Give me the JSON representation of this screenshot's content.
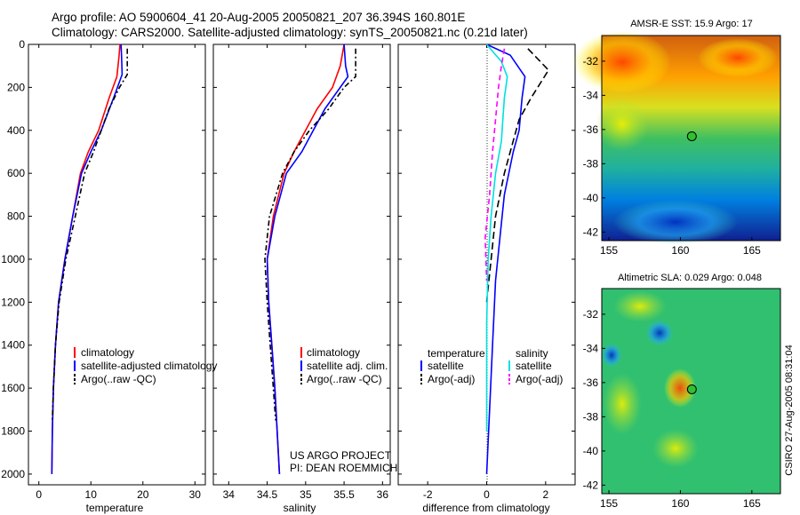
{
  "header": {
    "line1": "Argo profile: AO 5900604_41 20-Aug-2005 20050821_207 36.394S 160.801E",
    "line2": "Climatology: CARS2000. Satellite-adjusted climatology: synTS_20050821.nc (0.21d later)"
  },
  "credit": {
    "project": "US ARGO PROJECT",
    "pi": "PI: DEAN ROEMMICH"
  },
  "timestamp": "CSIRO 27-Aug-2005 08:31:04",
  "colors": {
    "climatology": "#ff0000",
    "satellite": "#0000ff",
    "argo": "#000000",
    "sal_satellite": "#00e0e0",
    "sal_argo": "#ff00ff"
  },
  "chart_data": [
    {
      "type": "line",
      "xlabel": "temperature",
      "ylabel": "",
      "xlim": [
        -2,
        32
      ],
      "ylim": [
        2050,
        0
      ],
      "xticks": [
        0,
        10,
        20,
        30
      ],
      "yticks": [
        0,
        200,
        400,
        600,
        800,
        1000,
        1200,
        1400,
        1600,
        1800,
        2000
      ],
      "legend": [
        "climatology",
        "satellite-adjusted climatology",
        "Argo(..raw -QC)"
      ],
      "series": [
        {
          "name": "climatology",
          "color": "#ff0000",
          "dash": "",
          "points": [
            [
              15.6,
              0
            ],
            [
              15.4,
              60
            ],
            [
              15.0,
              150
            ],
            [
              13.5,
              250
            ],
            [
              11.5,
              400
            ],
            [
              9.5,
              500
            ],
            [
              8.0,
              600
            ],
            [
              6.5,
              800
            ],
            [
              5.0,
              1000
            ],
            [
              3.8,
              1200
            ],
            [
              3.2,
              1400
            ],
            [
              2.8,
              1600
            ],
            [
              2.6,
              1800
            ],
            [
              2.5,
              2000
            ]
          ]
        },
        {
          "name": "satellite-adjusted climatology",
          "color": "#0000ff",
          "dash": "",
          "points": [
            [
              15.8,
              0
            ],
            [
              15.9,
              60
            ],
            [
              16.0,
              140
            ],
            [
              14.5,
              240
            ],
            [
              12.0,
              400
            ],
            [
              10.0,
              500
            ],
            [
              8.2,
              600
            ],
            [
              6.5,
              800
            ],
            [
              5.0,
              1000
            ],
            [
              3.8,
              1200
            ],
            [
              3.2,
              1400
            ],
            [
              2.8,
              1600
            ],
            [
              2.6,
              1800
            ],
            [
              2.5,
              2000
            ]
          ]
        },
        {
          "name": "Argo(..raw -QC)",
          "color": "#000000",
          "dash": "6,3,2,3",
          "points": [
            [
              17.0,
              20
            ],
            [
              17.0,
              100
            ],
            [
              17.0,
              140
            ],
            [
              15.5,
              200
            ],
            [
              13.5,
              300
            ],
            [
              12.0,
              400
            ],
            [
              10.5,
              500
            ],
            [
              8.8,
              600
            ],
            [
              7.0,
              800
            ],
            [
              5.2,
              1000
            ],
            [
              3.9,
              1200
            ],
            [
              3.2,
              1400
            ],
            [
              2.8,
              1600
            ],
            [
              2.6,
              1750
            ]
          ]
        }
      ]
    },
    {
      "type": "line",
      "xlabel": "salinity",
      "xlim": [
        33.8,
        36.1
      ],
      "ylim": [
        2050,
        0
      ],
      "xticks": [
        34,
        34.5,
        35,
        35.5,
        36
      ],
      "legend": [
        "climatology",
        "satellite adj. clim.",
        "Argo(..raw -QC)"
      ],
      "series": [
        {
          "name": "climatology",
          "color": "#ff0000",
          "dash": "",
          "points": [
            [
              35.5,
              0
            ],
            [
              35.45,
              100
            ],
            [
              35.35,
              200
            ],
            [
              35.15,
              300
            ],
            [
              35.0,
              400
            ],
            [
              34.85,
              500
            ],
            [
              34.72,
              600
            ],
            [
              34.58,
              800
            ],
            [
              34.5,
              1000
            ],
            [
              34.52,
              1200
            ],
            [
              34.56,
              1400
            ],
            [
              34.6,
              1600
            ],
            [
              34.63,
              1800
            ],
            [
              34.66,
              2000
            ]
          ]
        },
        {
          "name": "satellite adj. clim.",
          "color": "#0000ff",
          "dash": "",
          "points": [
            [
              35.5,
              0
            ],
            [
              35.52,
              100
            ],
            [
              35.55,
              150
            ],
            [
              35.45,
              200
            ],
            [
              35.25,
              300
            ],
            [
              35.1,
              400
            ],
            [
              34.95,
              500
            ],
            [
              34.75,
              600
            ],
            [
              34.6,
              800
            ],
            [
              34.5,
              1000
            ],
            [
              34.52,
              1200
            ],
            [
              34.56,
              1400
            ],
            [
              34.6,
              1600
            ],
            [
              34.63,
              1800
            ],
            [
              34.66,
              2000
            ]
          ]
        },
        {
          "name": "Argo(..raw -QC)",
          "color": "#000000",
          "dash": "6,3,2,3",
          "points": [
            [
              35.65,
              20
            ],
            [
              35.65,
              100
            ],
            [
              35.65,
              150
            ],
            [
              35.5,
              200
            ],
            [
              35.3,
              300
            ],
            [
              35.05,
              400
            ],
            [
              34.85,
              500
            ],
            [
              34.7,
              600
            ],
            [
              34.53,
              800
            ],
            [
              34.47,
              1000
            ],
            [
              34.5,
              1200
            ],
            [
              34.54,
              1400
            ],
            [
              34.58,
              1600
            ],
            [
              34.61,
              1750
            ]
          ]
        }
      ]
    },
    {
      "type": "line",
      "xlabel": "difference from climatology",
      "xlim": [
        -3,
        3
      ],
      "ylim": [
        2050,
        0
      ],
      "xticks": [
        -2,
        0,
        2
      ],
      "legend_groups": {
        "temperature": [
          "satellite",
          "Argo(-adj)"
        ],
        "salinity": [
          "satellite",
          "Argo(-adj)"
        ]
      },
      "series": [
        {
          "name": "temperature satellite",
          "color": "#0000ff",
          "dash": "",
          "points": [
            [
              0.0,
              0
            ],
            [
              0.8,
              50
            ],
            [
              1.3,
              150
            ],
            [
              1.2,
              250
            ],
            [
              1.1,
              400
            ],
            [
              0.9,
              500
            ],
            [
              0.6,
              700
            ],
            [
              0.45,
              900
            ],
            [
              0.3,
              1100
            ],
            [
              0.2,
              1400
            ],
            [
              0.1,
              1700
            ],
            [
              0.0,
              2000
            ]
          ]
        },
        {
          "name": "temperature Argo(-adj)",
          "color": "#000000",
          "dash": "8,4",
          "points": [
            [
              1.4,
              20
            ],
            [
              2.1,
              120
            ],
            [
              1.5,
              250
            ],
            [
              1.1,
              350
            ],
            [
              0.8,
              500
            ],
            [
              0.6,
              600
            ],
            [
              0.3,
              800
            ],
            [
              0.15,
              1000
            ],
            [
              0.0,
              1200
            ]
          ]
        },
        {
          "name": "salinity satellite",
          "color": "#00e0e0",
          "dash": "",
          "points": [
            [
              0.0,
              0
            ],
            [
              0.5,
              80
            ],
            [
              0.7,
              150
            ],
            [
              0.6,
              250
            ],
            [
              0.55,
              350
            ],
            [
              0.5,
              450
            ],
            [
              0.3,
              600
            ],
            [
              0.15,
              800
            ],
            [
              0.05,
              1000
            ],
            [
              0.0,
              1300
            ],
            [
              0.0,
              1800
            ]
          ]
        },
        {
          "name": "salinity Argo(-adj)",
          "color": "#ff00ff",
          "dash": "6,4",
          "points": [
            [
              0.6,
              20
            ],
            [
              0.5,
              100
            ],
            [
              0.4,
              200
            ],
            [
              0.3,
              350
            ],
            [
              0.2,
              500
            ],
            [
              0.1,
              700
            ],
            [
              -0.05,
              900
            ],
            [
              0.0,
              1100
            ]
          ]
        }
      ]
    },
    {
      "type": "heatmap",
      "title": "AMSR-E SST: 15.9 Argo: 17",
      "xlim": [
        154.5,
        167
      ],
      "ylim": [
        -42.5,
        -30.5
      ],
      "xticks": [
        155,
        160,
        165
      ],
      "yticks": [
        -32,
        -34,
        -36,
        -38,
        -40,
        -42
      ],
      "marker": {
        "lon": 160.801,
        "lat": -36.394
      }
    },
    {
      "type": "heatmap",
      "title": "Altimetric SLA: 0.029 Argo: 0.048",
      "xlim": [
        154.5,
        167
      ],
      "ylim": [
        -42.5,
        -30.5
      ],
      "xticks": [
        155,
        160,
        165
      ],
      "yticks": [
        -32,
        -34,
        -36,
        -38,
        -40,
        -42
      ],
      "marker": {
        "lon": 160.801,
        "lat": -36.394
      }
    }
  ]
}
